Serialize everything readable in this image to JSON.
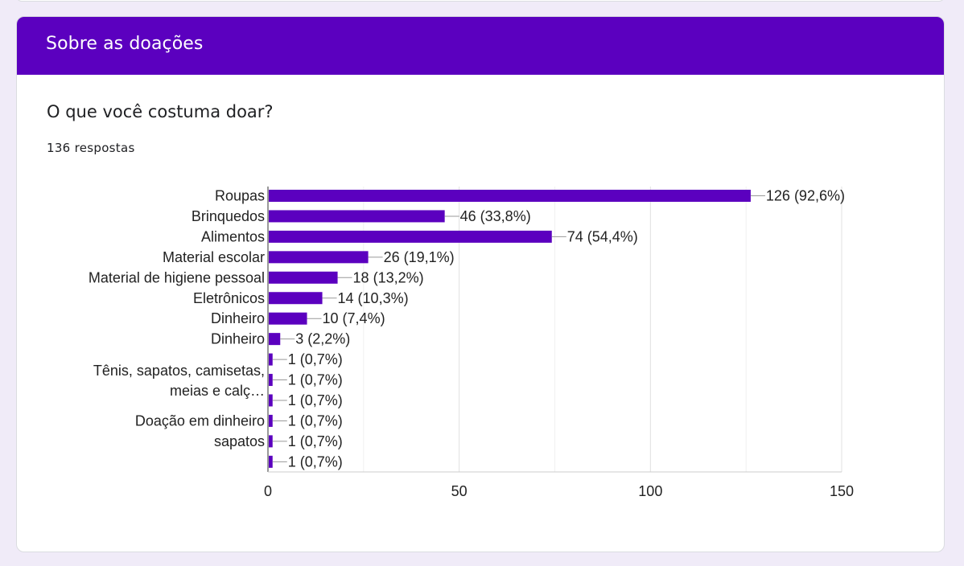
{
  "section": {
    "title": "Sobre as doações"
  },
  "question": {
    "title": "O que você costuma doar?",
    "responses": "136 respostas"
  },
  "colors": {
    "header": "#5b00bf",
    "bar": "#5b00bf",
    "background": "#f0ebf8"
  },
  "chart_data": {
    "type": "bar",
    "orientation": "horizontal",
    "categories": [
      "Roupas",
      "Brinquedos",
      "Alimentos",
      "Material escolar",
      "Material de higiene pessoal",
      "Eletrônicos",
      "Dinheiro",
      "Dinheiro",
      "",
      "Tênis, sapatos, camisetas, meias e calç…",
      "",
      "Doação em dinheiro",
      "sapatos",
      ""
    ],
    "values": [
      126,
      46,
      74,
      26,
      18,
      14,
      10,
      3,
      1,
      1,
      1,
      1,
      1,
      1
    ],
    "data_labels": [
      "126 (92,6%)",
      "46 (33,8%)",
      "74 (54,4%)",
      "26 (19,1%)",
      "18 (13,2%)",
      "14 (10,3%)",
      "10 (7,4%)",
      "3 (2,2%)",
      "1 (0,7%)",
      "1 (0,7%)",
      "1 (0,7%)",
      "1 (0,7%)",
      "1 (0,7%)",
      "1 (0,7%)"
    ],
    "xlim": [
      0,
      150
    ],
    "xticks": [
      "0",
      "50",
      "100",
      "150"
    ],
    "grid": true,
    "legend": "none"
  }
}
